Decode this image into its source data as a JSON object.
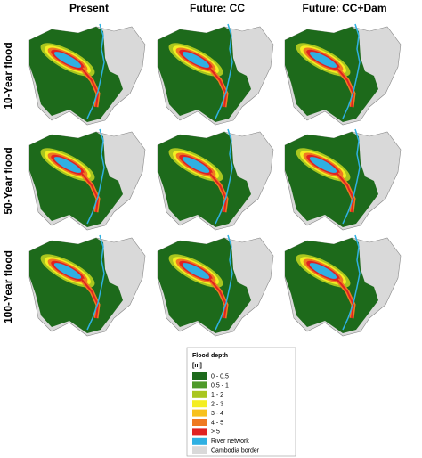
{
  "columns": [
    "Present",
    "Future: CC",
    "Future: CC+Dam"
  ],
  "rows": [
    "10-Year flood",
    "50-Year flood",
    "100-Year flood"
  ],
  "legend": {
    "title": "Flood depth",
    "unit": "[m]",
    "items": [
      {
        "label": "0 - 0.5",
        "color": "#1d6a1b"
      },
      {
        "label": "0.5 - 1",
        "color": "#4e9a2a"
      },
      {
        "label": "1 - 2",
        "color": "#a9c61f"
      },
      {
        "label": "2 - 3",
        "color": "#f4ee22"
      },
      {
        "label": "3 - 4",
        "color": "#f7c21e"
      },
      {
        "label": "4 - 5",
        "color": "#ef7a22"
      },
      {
        "label": "> 5",
        "color": "#e02222"
      },
      {
        "label": "River network",
        "color": "#2fb0e2"
      },
      {
        "label": "Cambodia border",
        "color": "#d9d9d9"
      }
    ]
  }
}
